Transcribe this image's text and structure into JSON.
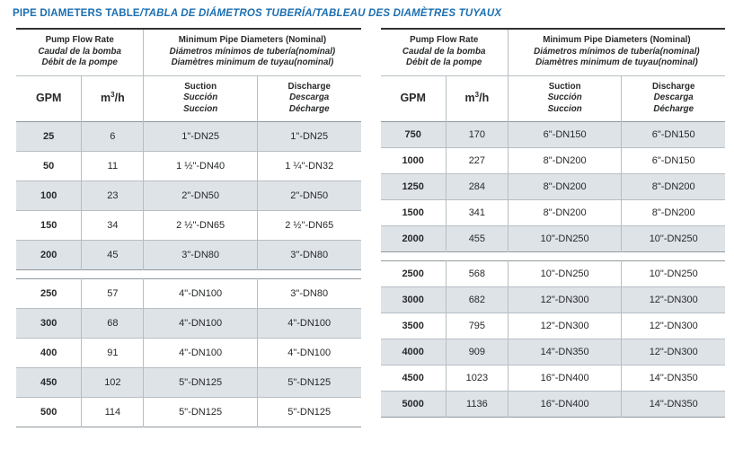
{
  "title": {
    "en": "PIPE DIAMETERS TABLE",
    "intl": "/TABLA DE DIÁMETROS TUBERÍA/TABLEAU DES DIAMÈTRES TUYAUX"
  },
  "header": {
    "flow": [
      "Pump Flow Rate",
      "Caudal de la bomba",
      "Débit de la pompe"
    ],
    "diameters": [
      "Minimum Pipe Diameters (Nominal)",
      "Diámetros mínimos de tubería(nominal)",
      "Diamètres minimum de tuyau(nominal)"
    ],
    "gpm": "GPM",
    "m3h": {
      "base": "m",
      "sup": "3",
      "rest": "/h"
    },
    "suction": [
      "Suction",
      "Succión",
      "Succion"
    ],
    "discharge": [
      "Discharge",
      "Descarga",
      "Décharge"
    ]
  },
  "columns": [
    "GPM",
    "m3/h",
    "Suction",
    "Discharge"
  ],
  "tables": [
    {
      "name": "low-flow",
      "blocks": [
        [
          [
            "25",
            "6",
            "1\"-DN25",
            "1\"-DN25"
          ],
          [
            "50",
            "11",
            "1 ½\"-DN40",
            "1 ¼\"-DN32"
          ],
          [
            "100",
            "23",
            "2\"-DN50",
            "2\"-DN50"
          ],
          [
            "150",
            "34",
            "2 ½\"-DN65",
            "2 ½\"-DN65"
          ],
          [
            "200",
            "45",
            "3\"-DN80",
            "3\"-DN80"
          ]
        ],
        [
          [
            "250",
            "57",
            "4\"-DN100",
            "3\"-DN80"
          ],
          [
            "300",
            "68",
            "4\"-DN100",
            "4\"-DN100"
          ],
          [
            "400",
            "91",
            "4\"-DN100",
            "4\"-DN100"
          ],
          [
            "450",
            "102",
            "5\"-DN125",
            "5\"-DN125"
          ],
          [
            "500",
            "114",
            "5\"-DN125",
            "5\"-DN125"
          ]
        ]
      ]
    },
    {
      "name": "high-flow",
      "blocks": [
        [
          [
            "750",
            "170",
            "6\"-DN150",
            "6\"-DN150"
          ],
          [
            "1000",
            "227",
            "8\"-DN200",
            "6\"-DN150"
          ],
          [
            "1250",
            "284",
            "8\"-DN200",
            "8\"-DN200"
          ],
          [
            "1500",
            "341",
            "8\"-DN200",
            "8\"-DN200"
          ],
          [
            "2000",
            "455",
            "10\"-DN250",
            "10\"-DN250"
          ]
        ],
        [
          [
            "2500",
            "568",
            "10\"-DN250",
            "10\"-DN250"
          ],
          [
            "3000",
            "682",
            "12\"-DN300",
            "12\"-DN300"
          ],
          [
            "3500",
            "795",
            "12\"-DN300",
            "12\"-DN300"
          ],
          [
            "4000",
            "909",
            "14\"-DN350",
            "12\"-DN300"
          ],
          [
            "4500",
            "1023",
            "16\"-DN400",
            "14\"-DN350"
          ],
          [
            "5000",
            "1136",
            "16\"-DN400",
            "14\"-DN350"
          ]
        ]
      ]
    }
  ],
  "colors": {
    "title_blue": "#1c6fb2",
    "row_shade": "#dee3e8",
    "border_dark": "#323232",
    "border_mid": "#8f979c",
    "border_light": "#b7bec3",
    "text": "#27292b"
  }
}
